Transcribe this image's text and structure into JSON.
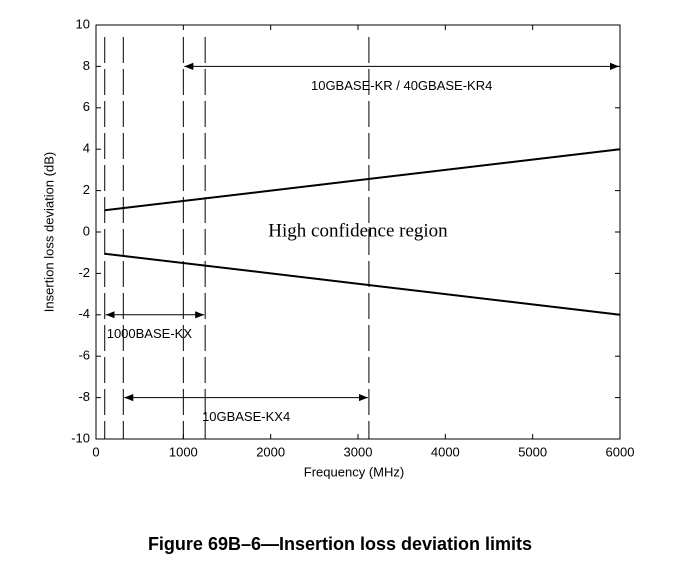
{
  "chart_data": {
    "type": "line",
    "x_label": "Frequency (MHz)",
    "y_label": "Insertion loss deviation (dB)",
    "x": [
      100,
      6000
    ],
    "series": [
      {
        "color": "#000000",
        "values": [
          1.05,
          4
        ]
      },
      {
        "color": "#000000",
        "values": [
          -1.05,
          -4
        ]
      }
    ],
    "xlim": [
      0,
      6000
    ],
    "xticks": [
      0,
      1000,
      2000,
      3000,
      4000,
      5000,
      6000
    ],
    "ylim": [
      -10,
      10
    ],
    "yticks": [
      -10,
      -8,
      -6,
      -4,
      -2,
      0,
      2,
      4,
      6,
      8,
      10
    ],
    "grid": false,
    "vertical_lines": [
      100,
      312.5,
      1000,
      1250,
      3125
    ],
    "annotations": [
      {
        "label": "10GBASE-KR / 40GBASE-KR4",
        "x": [
          1000,
          6000
        ],
        "y": 8
      },
      {
        "label": "1000BASE-KX",
        "x": [
          100,
          1250
        ],
        "y": -4
      },
      {
        "label": "10GBASE-KX4",
        "x": [
          312.5,
          3125
        ],
        "y": -8
      }
    ],
    "region_label": {
      "text": "High confidence region",
      "x": 3000,
      "y": 0
    }
  },
  "caption": "Figure 69B–6—Insertion loss deviation limits"
}
